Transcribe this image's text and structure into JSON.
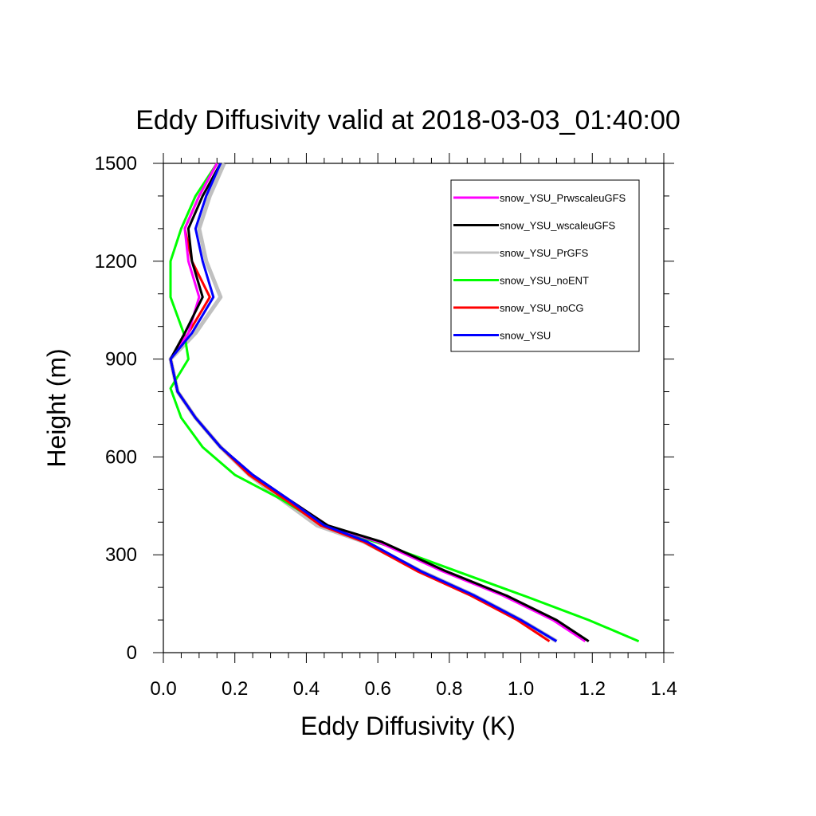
{
  "chart_data": {
    "type": "line",
    "title": "Eddy Diffusivity valid at 2018-03-03_01:40:00",
    "xlabel": "Eddy Diffusivity (K)",
    "ylabel": "Height (m)",
    "xlim": [
      0.0,
      1.4
    ],
    "ylim": [
      0,
      1500
    ],
    "xticks": [
      0.0,
      0.2,
      0.4,
      0.6,
      0.8,
      1.0,
      1.2,
      1.4
    ],
    "xtick_labels": [
      "0.0",
      "0.2",
      "0.4",
      "0.6",
      "0.8",
      "1.0",
      "1.2",
      "1.4"
    ],
    "yticks": [
      0,
      300,
      600,
      900,
      1200,
      1500
    ],
    "ytick_labels": [
      "0",
      "300",
      "600",
      "900",
      "1200",
      "1500"
    ],
    "grid": false,
    "legend_position": "top-right",
    "series": [
      {
        "name": "snow_YSU_PrwscaleuGFS",
        "color": "#ff00ff",
        "x": [
          1.18,
          1.09,
          0.95,
          0.78,
          0.6,
          0.46,
          0.35,
          0.25,
          0.16,
          0.09,
          0.04,
          0.02,
          0.07,
          0.1,
          0.07,
          0.06,
          0.1,
          0.15
        ],
        "y": [
          35,
          100,
          175,
          250,
          340,
          390,
          470,
          545,
          630,
          720,
          800,
          900,
          980,
          1090,
          1200,
          1300,
          1400,
          1500
        ]
      },
      {
        "name": "snow_YSU_wscaleuGFS",
        "color": "#000000",
        "x": [
          1.19,
          1.1,
          0.96,
          0.79,
          0.61,
          0.46,
          0.35,
          0.25,
          0.16,
          0.09,
          0.04,
          0.02,
          0.06,
          0.11,
          0.08,
          0.07,
          0.11,
          0.16
        ],
        "y": [
          35,
          100,
          175,
          250,
          340,
          390,
          470,
          545,
          630,
          720,
          800,
          900,
          980,
          1090,
          1200,
          1300,
          1400,
          1500
        ]
      },
      {
        "name": "snow_YSU_PrGFS",
        "color": "#c0c0c0",
        "x": [
          1.1,
          1.0,
          0.87,
          0.72,
          0.56,
          0.43,
          0.33,
          0.24,
          0.16,
          0.09,
          0.04,
          0.02,
          0.09,
          0.16,
          0.12,
          0.1,
          0.13,
          0.17
        ],
        "y": [
          35,
          100,
          175,
          250,
          340,
          390,
          470,
          545,
          630,
          720,
          800,
          900,
          980,
          1090,
          1200,
          1300,
          1400,
          1500
        ]
      },
      {
        "name": "snow_YSU_noENT",
        "color": "#00ff00",
        "x": [
          1.33,
          1.19,
          1.02,
          0.82,
          0.62,
          0.45,
          0.33,
          0.2,
          0.11,
          0.05,
          0.02,
          0.07,
          0.06,
          0.02,
          0.02,
          0.05,
          0.09,
          0.15
        ],
        "y": [
          35,
          100,
          170,
          250,
          330,
          390,
          470,
          545,
          630,
          720,
          810,
          900,
          970,
          1090,
          1200,
          1300,
          1400,
          1500
        ]
      },
      {
        "name": "snow_YSU_noCG",
        "color": "#ff0000",
        "x": [
          1.08,
          0.99,
          0.86,
          0.71,
          0.56,
          0.44,
          0.34,
          0.24,
          0.16,
          0.09,
          0.04,
          0.02,
          0.07,
          0.13,
          0.08,
          0.06,
          0.1,
          0.15
        ],
        "y": [
          35,
          100,
          175,
          250,
          340,
          390,
          470,
          545,
          630,
          720,
          800,
          900,
          980,
          1090,
          1200,
          1300,
          1400,
          1500
        ]
      },
      {
        "name": "snow_YSU",
        "color": "#0000ff",
        "x": [
          1.1,
          1.0,
          0.87,
          0.72,
          0.57,
          0.45,
          0.35,
          0.25,
          0.16,
          0.09,
          0.04,
          0.02,
          0.08,
          0.14,
          0.11,
          0.09,
          0.12,
          0.16
        ],
        "y": [
          35,
          100,
          175,
          250,
          340,
          390,
          470,
          545,
          630,
          720,
          800,
          900,
          980,
          1090,
          1200,
          1300,
          1400,
          1500
        ]
      }
    ]
  }
}
